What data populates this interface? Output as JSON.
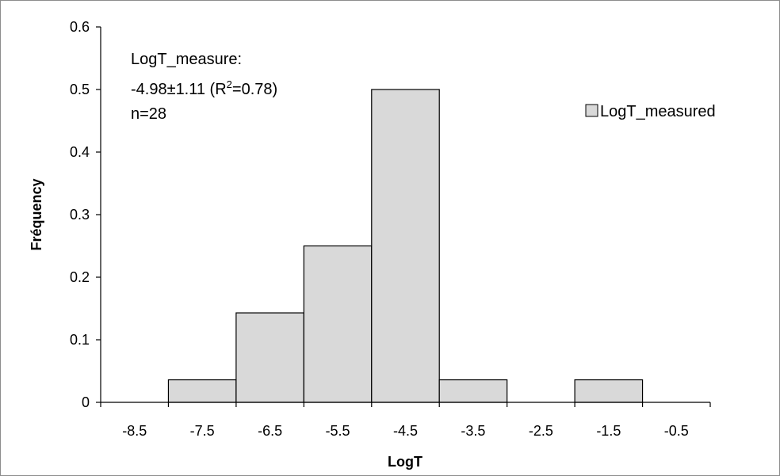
{
  "chart_data": {
    "type": "bar",
    "xlabel": "LogT",
    "ylabel": "Fréquency",
    "ylim": [
      0,
      0.6
    ],
    "y_ticks": [
      0,
      0.1,
      0.2,
      0.3,
      0.4,
      0.5,
      0.6
    ],
    "y_tick_labels": [
      "0",
      "0.1",
      "0.2",
      "0.3",
      "0.4",
      "0.5",
      "0.6"
    ],
    "xlim": [
      -9,
      0
    ],
    "x_tick_labels": [
      "-8.5",
      "-7.5",
      "-6.5",
      "-5.5",
      "-4.5",
      "-3.5",
      "-2.5",
      "-1.5",
      "-0.5"
    ],
    "x_tick_values": [
      -8.5,
      -7.5,
      -6.5,
      -5.5,
      -4.5,
      -3.5,
      -2.5,
      -1.5,
      -0.5
    ],
    "bins": [
      {
        "from": -9,
        "to": -8,
        "value": 0
      },
      {
        "from": -8,
        "to": -7,
        "value": 0.036
      },
      {
        "from": -7,
        "to": -6,
        "value": 0.143
      },
      {
        "from": -6,
        "to": -5,
        "value": 0.25
      },
      {
        "from": -5,
        "to": -4,
        "value": 0.5
      },
      {
        "from": -4,
        "to": -3,
        "value": 0.036
      },
      {
        "from": -3,
        "to": -2,
        "value": 0
      },
      {
        "from": -2,
        "to": -1,
        "value": 0.036
      },
      {
        "from": -1,
        "to": 0,
        "value": 0
      }
    ],
    "series": [
      {
        "name": "LogT_measured",
        "color": "#d9d9d9"
      }
    ],
    "legend": {
      "label": "LogT_measured",
      "position": "top-right"
    },
    "grid": false,
    "annotation": {
      "line1": "LogT_measure:",
      "line2_prefix": "-4.98±1.11 (R",
      "line2_sup": "2",
      "line2_suffix": "=0.78)",
      "line3": "n=28"
    }
  }
}
